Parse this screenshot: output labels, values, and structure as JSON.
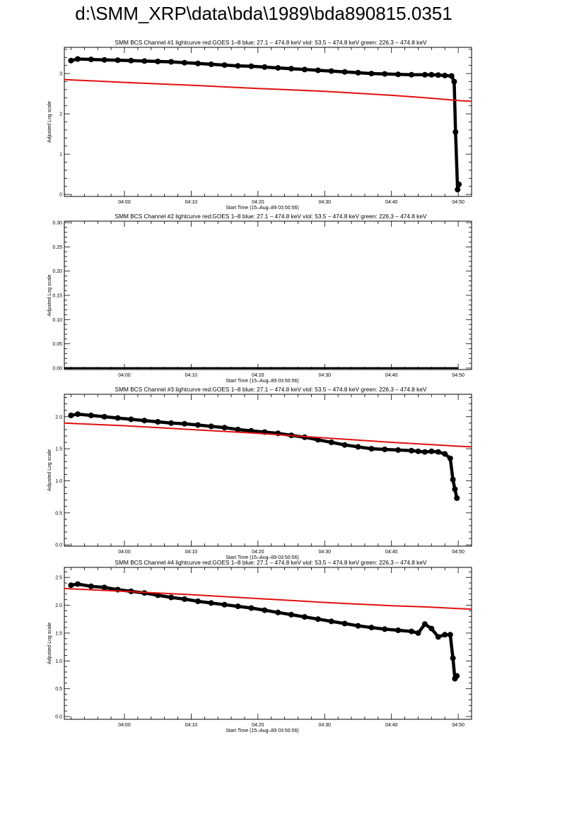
{
  "page": {
    "title": "d:\\SMM_XRP\\data\\bda\\1989\\bda890815.0351"
  },
  "colors": {
    "black": "#000000",
    "red": "#e01010",
    "background": "#ffffff"
  },
  "chart_data": [
    {
      "type": "line",
      "title": "SMM BCS Channel #1 lightcurve  red:GOES 1–8  blue: 27.1 – 474.8 keV  viol: 53.5 – 474.8 keV  green: 226.3 – 474.8 keV",
      "xlabel": "Start Time (15–Aug–89 03:50:56)",
      "ylabel": "Adjusted Log scale",
      "xlim": [
        "03:51",
        "04:52"
      ],
      "ylim": [
        -0.05,
        3.65
      ],
      "yticks": [
        0,
        1,
        2,
        3
      ],
      "ytick_labels": [
        "0",
        "1",
        "2",
        "3"
      ],
      "xtick_labels": [
        "04:00",
        "04:10",
        "04:20",
        "04:30",
        "04:40",
        "04:50"
      ],
      "series": [
        {
          "color": "#000000",
          "markers": true,
          "x": [
            "03:52",
            "03:53",
            "03:55",
            "03:57",
            "03:59",
            "04:01",
            "04:03",
            "04:05",
            "04:07",
            "04:09",
            "04:11",
            "04:13",
            "04:15",
            "04:17",
            "04:19",
            "04:21",
            "04:23",
            "04:25",
            "04:27",
            "04:29",
            "04:31",
            "04:33",
            "04:35",
            "04:37",
            "04:39",
            "04:41",
            "04:43",
            "04:45",
            "04:46",
            "04:47",
            "04:48",
            "04:49",
            "04:49.4",
            "04:49.6",
            "04:49.9",
            "04:50.1"
          ],
          "y": [
            3.32,
            3.36,
            3.35,
            3.34,
            3.33,
            3.32,
            3.31,
            3.3,
            3.29,
            3.27,
            3.25,
            3.23,
            3.21,
            3.19,
            3.18,
            3.16,
            3.14,
            3.12,
            3.1,
            3.08,
            3.06,
            3.04,
            3.02,
            3.0,
            2.99,
            2.98,
            2.97,
            2.97,
            2.97,
            2.96,
            2.95,
            2.94,
            2.8,
            1.55,
            0.12,
            0.25
          ]
        },
        {
          "color": "#e01010",
          "markers": false,
          "x": [
            "03:51",
            "04:00",
            "04:10",
            "04:20",
            "04:30",
            "04:40",
            "04:45",
            "04:50",
            "04:52"
          ],
          "y": [
            2.85,
            2.78,
            2.71,
            2.63,
            2.56,
            2.46,
            2.4,
            2.33,
            2.31
          ]
        }
      ]
    },
    {
      "type": "line",
      "title": "SMM BCS Channel #2 lightcurve  red:GOES 1–8  blue: 27.1 – 474.8 keV  viol: 53.5 – 474.8 keV  green: 226.3 – 474.8 keV",
      "xlabel": "Start Time (15–Aug–89 03:50:56)",
      "ylabel": "Adjusted Log scale",
      "xlim": [
        "03:51",
        "04:52"
      ],
      "ylim": [
        -0.003,
        0.303
      ],
      "yticks": [
        0,
        0.05,
        0.1,
        0.15,
        0.2,
        0.25,
        0.3
      ],
      "ytick_labels": [
        "0.00",
        "0.05",
        "0.10",
        "0.15",
        "0.20",
        "0.25",
        "0.30"
      ],
      "xtick_labels": [
        "04:00",
        "04:10",
        "04:20",
        "04:30",
        "04:40",
        "04:50"
      ],
      "series": [
        {
          "color": "#000000",
          "markers": false,
          "x": [
            "03:51",
            "04:00",
            "04:10",
            "04:20",
            "04:30",
            "04:40",
            "04:50"
          ],
          "y": [
            0,
            0,
            0,
            0,
            0,
            0,
            0
          ]
        }
      ]
    },
    {
      "type": "line",
      "title": "SMM BCS Channel #3 lightcurve  red:GOES 1–8  blue: 27.1 – 474.8 keV  viol: 53.5 – 474.8 keV  green: 226.3 – 474.8 keV",
      "xlabel": "Start Time (15–Aug–89 03:50:56)",
      "ylabel": "Adjusted Log scale",
      "xlim": [
        "03:51",
        "04:52"
      ],
      "ylim": [
        -0.02,
        2.35
      ],
      "yticks": [
        0,
        0.5,
        1.0,
        1.5,
        2.0
      ],
      "ytick_labels": [
        "0.0",
        "0.5",
        "1.0",
        "1.5",
        "2.0"
      ],
      "xtick_labels": [
        "04:00",
        "04:10",
        "04:20",
        "04:30",
        "04:40",
        "04:50"
      ],
      "series": [
        {
          "color": "#000000",
          "markers": true,
          "x": [
            "03:52",
            "03:53",
            "03:55",
            "03:57",
            "03:59",
            "04:01",
            "04:03",
            "04:05",
            "04:07",
            "04:09",
            "04:11",
            "04:13",
            "04:15",
            "04:17",
            "04:19",
            "04:21",
            "04:23",
            "04:25",
            "04:27",
            "04:29",
            "04:31",
            "04:33",
            "04:35",
            "04:37",
            "04:39",
            "04:41",
            "04:43",
            "04:44",
            "04:45",
            "04:46",
            "04:47",
            "04:48",
            "04:48.8",
            "04:49.2",
            "04:49.5",
            "04:49.8"
          ],
          "y": [
            2.02,
            2.04,
            2.02,
            2.0,
            1.98,
            1.96,
            1.94,
            1.92,
            1.9,
            1.89,
            1.87,
            1.85,
            1.83,
            1.8,
            1.78,
            1.76,
            1.74,
            1.71,
            1.68,
            1.64,
            1.6,
            1.56,
            1.53,
            1.5,
            1.49,
            1.48,
            1.47,
            1.46,
            1.45,
            1.46,
            1.45,
            1.42,
            1.35,
            1.02,
            0.87,
            0.73
          ]
        },
        {
          "color": "#e01010",
          "markers": false,
          "x": [
            "03:51",
            "04:00",
            "04:10",
            "04:20",
            "04:30",
            "04:40",
            "04:50",
            "04:52"
          ],
          "y": [
            1.9,
            1.86,
            1.8,
            1.74,
            1.67,
            1.6,
            1.54,
            1.53
          ]
        }
      ]
    },
    {
      "type": "line",
      "title": "SMM BCS Channel #4 lightcurve  red:GOES 1–8  blue: 27.1 – 474.8 keV  viol: 53.5 – 474.8 keV  green: 226.3 – 474.8 keV",
      "xlabel": "Start Time (15–Aug–89 03:50:56)",
      "ylabel": "Adjusted Log scale",
      "xlim": [
        "03:51",
        "04:52"
      ],
      "ylim": [
        -0.05,
        2.68
      ],
      "yticks": [
        0,
        0.5,
        1.0,
        1.5,
        2.0,
        2.5
      ],
      "ytick_labels": [
        "0.0",
        "0.5",
        "1.0",
        "1.5",
        "2.0",
        "2.5"
      ],
      "xtick_labels": [
        "04:00",
        "04:10",
        "04:20",
        "04:30",
        "04:40",
        "04:50"
      ],
      "series": [
        {
          "color": "#000000",
          "markers": true,
          "x": [
            "03:52",
            "03:53",
            "03:55",
            "03:57",
            "03:59",
            "04:01",
            "04:03",
            "04:05",
            "04:07",
            "04:09",
            "04:11",
            "04:13",
            "04:15",
            "04:17",
            "04:19",
            "04:21",
            "04:23",
            "04:25",
            "04:27",
            "04:29",
            "04:31",
            "04:33",
            "04:35",
            "04:37",
            "04:39",
            "04:41",
            "04:43",
            "04:44",
            "04:45",
            "04:46",
            "04:47",
            "04:48",
            "04:48.8",
            "04:49.2",
            "04:49.5",
            "04:49.8"
          ],
          "y": [
            2.36,
            2.38,
            2.34,
            2.32,
            2.28,
            2.25,
            2.22,
            2.18,
            2.14,
            2.11,
            2.07,
            2.04,
            2.01,
            1.98,
            1.95,
            1.91,
            1.87,
            1.83,
            1.79,
            1.75,
            1.71,
            1.67,
            1.63,
            1.6,
            1.57,
            1.55,
            1.53,
            1.5,
            1.66,
            1.58,
            1.43,
            1.47,
            1.47,
            1.05,
            0.68,
            0.73
          ]
        },
        {
          "color": "#e01010",
          "markers": false,
          "x": [
            "03:51",
            "04:00",
            "04:10",
            "04:20",
            "04:30",
            "04:40",
            "04:45",
            "04:50",
            "04:52"
          ],
          "y": [
            2.3,
            2.25,
            2.19,
            2.12,
            2.05,
            1.99,
            1.97,
            1.94,
            1.93
          ]
        }
      ]
    }
  ]
}
